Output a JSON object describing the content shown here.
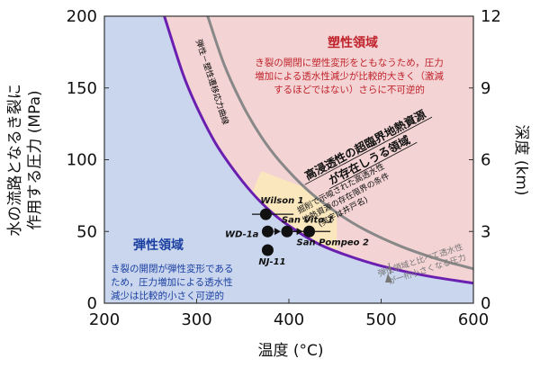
{
  "chart_data": {
    "type": "line",
    "xlabel": "温度 (°C)",
    "ylabel_lines": [
      "水の流路となるき裂に",
      "作用する圧力 (MPa)"
    ],
    "y2label": "深度 (km)",
    "xlim": [
      200,
      600
    ],
    "ylim": [
      0,
      200
    ],
    "y2lim": [
      0,
      12
    ],
    "xticks": [
      200,
      300,
      400,
      500,
      600
    ],
    "yticks": [
      0,
      50,
      100,
      150,
      200
    ],
    "y2ticks": [
      0,
      3,
      6,
      9,
      12
    ],
    "colors": {
      "elastic_region": "#c9d6ee",
      "plastic_region": "#f3d3d3",
      "supercritical_region": "#fbe7bd",
      "transition_curve": "#6a1fb0",
      "gray_curve": "#888888",
      "plastic_text": "#c0232c",
      "elastic_title": "#1b3fa0"
    },
    "series": [
      {
        "name": "弾性－塑性遷移応力曲線",
        "x": [
          265,
          285,
          300,
          320,
          340,
          360,
          380,
          400,
          430,
          460,
          500,
          550,
          600
        ],
        "y": [
          200,
          160,
          137,
          112,
          93,
          77,
          64,
          54,
          42,
          34,
          26,
          19,
          14
        ]
      },
      {
        "name": "gray_curve",
        "x": [
          312,
          330,
          350,
          370,
          390,
          420,
          450,
          480,
          520,
          560,
          600
        ],
        "y": [
          200,
          166,
          138,
          116,
          99,
          79,
          64,
          52,
          40,
          31,
          24
        ]
      }
    ],
    "points": [
      {
        "label": "Wilson 1",
        "x": 375,
        "y": 62,
        "xerr": [
          360,
          405
        ]
      },
      {
        "label": "WD-1a",
        "x": 377,
        "y": 50,
        "xerr": null
      },
      {
        "label": "San Vito 1",
        "x": 398,
        "y": 50,
        "xerr": null
      },
      {
        "label": "San Pompeo 2",
        "x": 422,
        "y": 50,
        "xerr": [
          395,
          445
        ]
      },
      {
        "label": "NJ-11",
        "x": 377,
        "y": 37,
        "xerr": null
      }
    ]
  },
  "annotations": {
    "plastic_title": "塑性領域",
    "plastic_desc": [
      "き裂の開閉に塑性変形をともなうため，圧力",
      "増加による透水性減少が比較的大きく（激減",
      "するほどではない）さらに不可逆的"
    ],
    "elastic_title": "弾性領域",
    "elastic_desc": [
      "き裂の開閉が弾性変形である",
      "ため，圧力増加による透水性",
      "減少は比較的小さく可逆的"
    ],
    "curve_label": "弾性－塑性遷移応力曲線",
    "super_title": [
      "高浸透性の超臨界地熱資源",
      "が存在しうる領域"
    ],
    "super_desc": [
      "掘削で示唆された高透水性",
      "地熱資源の存在限界の条件",
      "(実字は井戸名)"
    ],
    "gray_note": [
      "弾性領域と比べて透水性",
      "が一桁小さくなる圧力"
    ]
  }
}
